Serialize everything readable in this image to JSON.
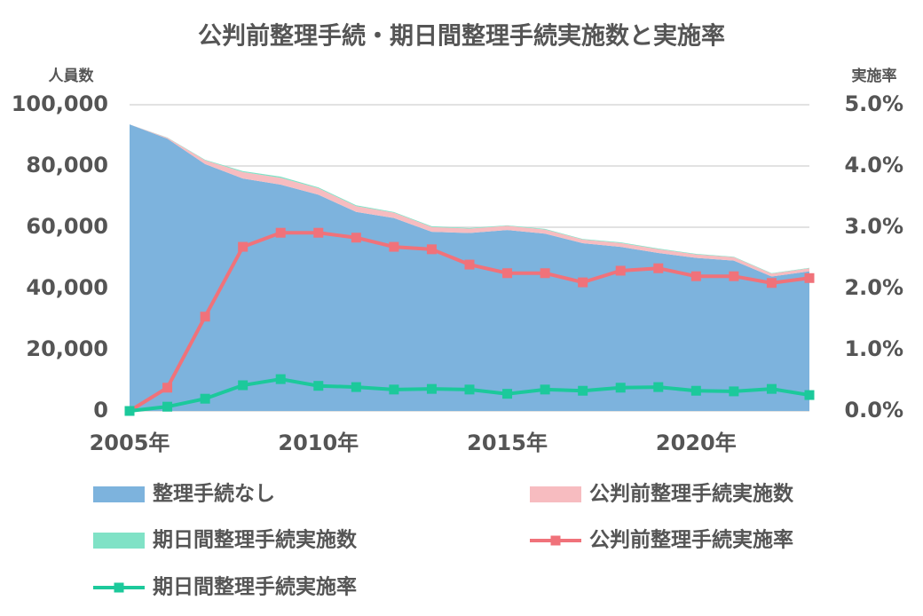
{
  "chart_data": {
    "type": "area",
    "title": "公判前整理手続・期日間整理手続実施数と実施率",
    "y_label": "人員数",
    "y2_label": "実施率",
    "x": [
      2005,
      2006,
      2007,
      2008,
      2009,
      2010,
      2011,
      2012,
      2013,
      2014,
      2015,
      2016,
      2017,
      2018,
      2019,
      2020,
      2021,
      2022,
      2023
    ],
    "xlim": [
      2005,
      2023
    ],
    "xticks": [
      {
        "value": 2005,
        "label": "2005年"
      },
      {
        "value": 2010,
        "label": "2010年"
      },
      {
        "value": 2015,
        "label": "2015年"
      },
      {
        "value": 2020,
        "label": "2020年"
      }
    ],
    "ylim": [
      0,
      100000
    ],
    "yticks": [
      0,
      {
        "value": 20000,
        "label": "20,000"
      },
      {
        "value": 40000,
        "label": "40,000"
      },
      {
        "value": 60000,
        "label": "60,000"
      },
      {
        "value": 80000,
        "label": "80,000"
      },
      {
        "value": 100000,
        "label": "100,000"
      }
    ],
    "y2lim": [
      0,
      5
    ],
    "y2ticks": [
      {
        "value": 0,
        "label": "0.0%"
      },
      {
        "value": 1,
        "label": "1.0%"
      },
      {
        "value": 2,
        "label": "2.0%"
      },
      {
        "value": 3,
        "label": "3.0%"
      },
      {
        "value": 4,
        "label": "4.0%"
      },
      {
        "value": 5,
        "label": "5.0%"
      }
    ],
    "grid": true,
    "stacked": true,
    "series": [
      {
        "name": "整理手続なし",
        "type": "area",
        "color": "#7db3dd",
        "values": [
          93600,
          88900,
          80600,
          75900,
          73900,
          70600,
          65000,
          63000,
          58500,
          58100,
          59100,
          57900,
          54800,
          53600,
          51600,
          50000,
          49100,
          43900,
          45600
        ]
      },
      {
        "name": "公判前整理手続実施数",
        "type": "area",
        "color": "#f7bcc0",
        "values": [
          0,
          340,
          1260,
          2100,
          2230,
          2120,
          1900,
          1740,
          1590,
          1430,
          1360,
          1340,
          1180,
          1260,
          1230,
          1130,
          1110,
          940,
          1010
        ]
      },
      {
        "name": "期日間整理手続実施数",
        "type": "area",
        "color": "#80e2c6",
        "values": [
          0,
          60,
          160,
          330,
          400,
          300,
          260,
          230,
          220,
          210,
          170,
          210,
          190,
          210,
          210,
          170,
          160,
          160,
          120
        ]
      },
      {
        "name": "公判前整理手続実施率",
        "type": "line",
        "axis": "y2",
        "color": "#f0727a",
        "values": [
          0,
          0.38,
          1.54,
          2.68,
          2.91,
          2.91,
          2.83,
          2.68,
          2.64,
          2.39,
          2.25,
          2.25,
          2.1,
          2.29,
          2.33,
          2.2,
          2.2,
          2.09,
          2.17
        ]
      },
      {
        "name": "期日間整理手続実施率",
        "type": "line",
        "axis": "y2",
        "color": "#1cc99b",
        "values": [
          0,
          0.07,
          0.2,
          0.42,
          0.52,
          0.41,
          0.39,
          0.35,
          0.36,
          0.35,
          0.28,
          0.35,
          0.33,
          0.38,
          0.39,
          0.33,
          0.32,
          0.36,
          0.26
        ]
      }
    ]
  }
}
